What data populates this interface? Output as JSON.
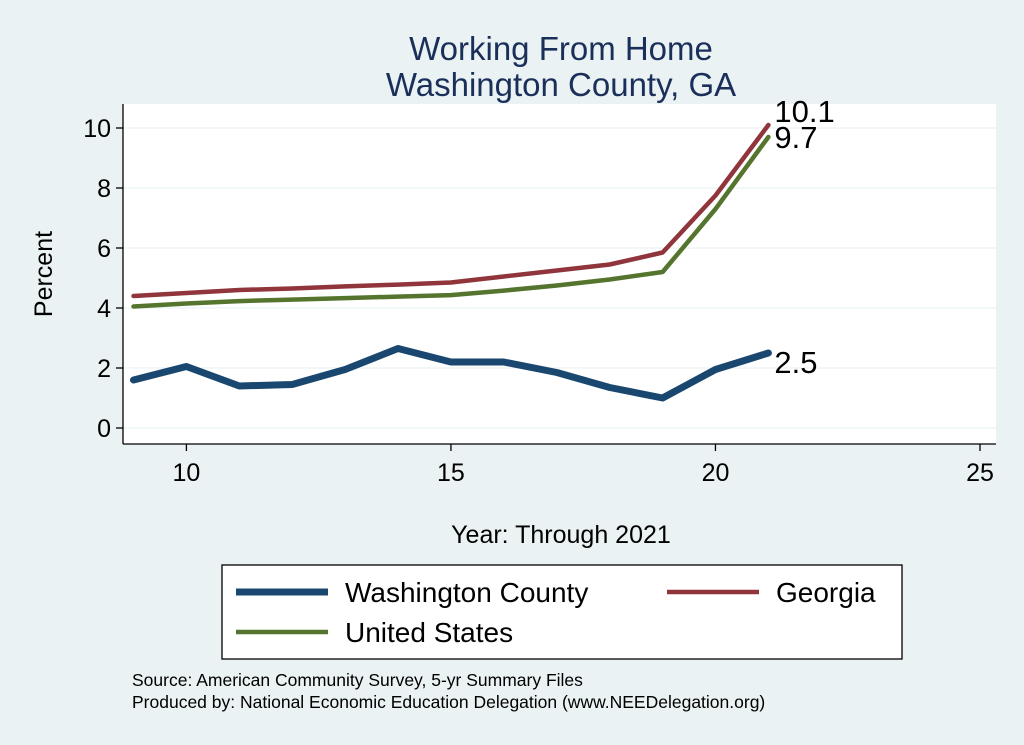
{
  "chart_data": {
    "type": "line",
    "title": [
      "Working From Home",
      "Washington County, GA"
    ],
    "xlabel": "Year: Through 2021",
    "ylabel": "Percent",
    "xlim": [
      9,
      25
    ],
    "ylim": [
      0,
      10.5
    ],
    "xticks": [
      10,
      15,
      20,
      25
    ],
    "yticks": [
      0,
      2,
      4,
      6,
      8,
      10
    ],
    "grid": true,
    "series": [
      {
        "name": "Washington County",
        "color": "#1a476f",
        "width": "thick",
        "x": [
          9,
          10,
          11,
          12,
          13,
          14,
          15,
          16,
          17,
          18,
          19,
          20,
          21
        ],
        "y": [
          1.6,
          2.05,
          1.4,
          1.45,
          1.95,
          2.65,
          2.2,
          2.2,
          1.85,
          1.35,
          1.0,
          1.95,
          2.5
        ],
        "end_label": "2.5"
      },
      {
        "name": "Georgia",
        "color": "#90353b",
        "width": "normal",
        "x": [
          9,
          10,
          11,
          12,
          13,
          14,
          15,
          16,
          17,
          18,
          19,
          20,
          21
        ],
        "y": [
          4.4,
          4.5,
          4.6,
          4.65,
          4.72,
          4.78,
          4.85,
          5.05,
          5.25,
          5.45,
          5.85,
          7.75,
          10.1
        ],
        "end_label": "10.1"
      },
      {
        "name": "United States",
        "color": "#55752f",
        "width": "normal",
        "x": [
          9,
          10,
          11,
          12,
          13,
          14,
          15,
          16,
          17,
          18,
          19,
          20,
          21
        ],
        "y": [
          4.05,
          4.15,
          4.23,
          4.28,
          4.33,
          4.38,
          4.43,
          4.58,
          4.75,
          4.95,
          5.2,
          7.3,
          9.7
        ],
        "end_label": "9.7"
      }
    ],
    "legend": {
      "position": "bottom",
      "entries": [
        "Washington County",
        "Georgia",
        "United States"
      ]
    },
    "notes": [
      "Source: American Community Survey, 5-yr Summary Files",
      "Produced by: National Economic Education Delegation (www.NEEDelegation.org)"
    ]
  }
}
